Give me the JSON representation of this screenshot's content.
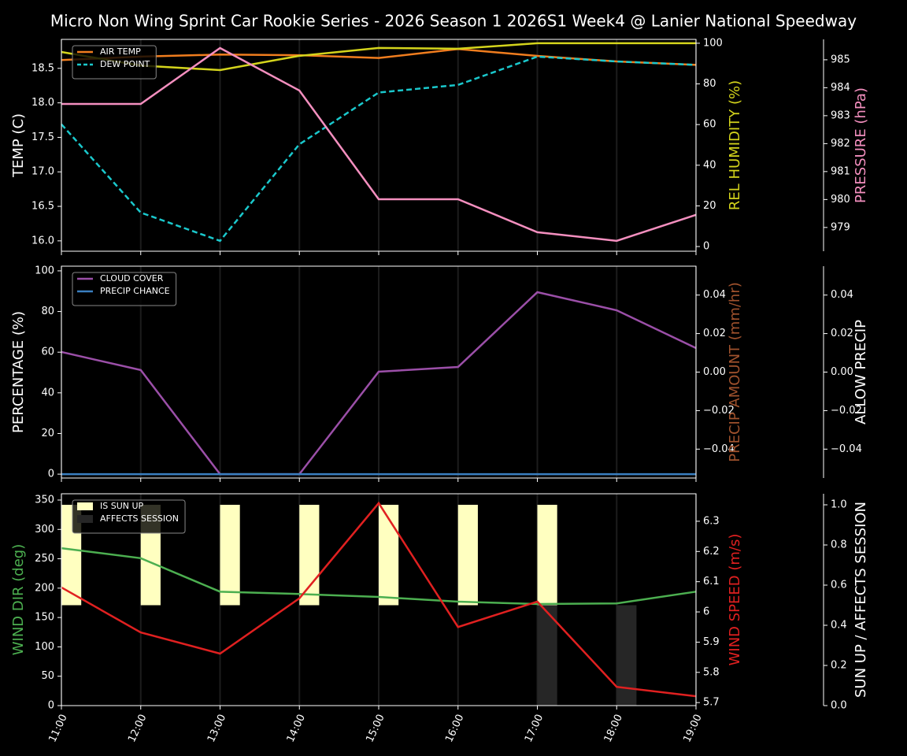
{
  "chart_data": [
    {
      "type": "line",
      "title": "Micro Non Wing Sprint Car Rookie Series - 2026 Season 1 2026S1 Week4 @ Lanier National Speedway",
      "legend": "upper left",
      "ylabel": "TEMP (C)",
      "ylabel_color": "#ffffff",
      "ylim": [
        15.85,
        18.92
      ],
      "yticks": [
        {
          "value": 16.0,
          "label": "16.0"
        },
        {
          "value": 16.5,
          "label": "16.5"
        },
        {
          "value": 17.0,
          "label": "17.0"
        },
        {
          "value": 17.5,
          "label": "17.5"
        },
        {
          "value": 18.0,
          "label": "18.0"
        },
        {
          "value": 18.5,
          "label": "18.5"
        }
      ],
      "y2label": "REL HUMIDITY (%)",
      "y2label_color": "#d4d41c",
      "y2lim": [
        -2.3,
        101.9
      ],
      "y2ticks": [
        0,
        20,
        40,
        60,
        80,
        100
      ],
      "y3label": "PRESSURE (hPa)",
      "y3label_color": "#f48fbf",
      "y3lim": [
        978.15,
        985.73
      ],
      "y3ticks": [
        979,
        980,
        981,
        982,
        983,
        984,
        985
      ],
      "series": [
        {
          "name": "AIR TEMP",
          "color": "#f07d1e",
          "values": [
            18.62,
            18.67,
            18.7,
            18.69,
            18.65,
            18.78,
            18.68,
            18.6,
            18.55
          ]
        },
        {
          "name": "DEW POINT",
          "color": "#1ac8cc",
          "dashed": true,
          "values": [
            17.69,
            16.41,
            16.0,
            17.4,
            18.15,
            18.26,
            18.67,
            18.6,
            18.55
          ]
        },
        {
          "axis": "y2",
          "color": "#d4d41c",
          "values": [
            95.7,
            89,
            86.8,
            93.8,
            97.7,
            97.3,
            100,
            100,
            100
          ]
        },
        {
          "axis": "y3",
          "color": "#f48fbf",
          "values": [
            983.42,
            983.42,
            985.42,
            983.9,
            980.01,
            980.01,
            978.83,
            978.52,
            979.45
          ]
        }
      ]
    },
    {
      "type": "line",
      "legend": "upper left",
      "ylabel": "PERCENTAGE (%)",
      "ylabel_color": "#ffffff",
      "ylim": [
        -1.9,
        102.3
      ],
      "yticks": [
        0,
        20,
        40,
        60,
        80,
        100
      ],
      "y2label": "PRECIP AMOUNT (mm/hr)",
      "y2label_color": "#a0522d",
      "y2lim": [
        -0.055,
        0.055
      ],
      "y2ticks": [
        {
          "value": -0.04,
          "label": "−0.04"
        },
        {
          "value": -0.02,
          "label": "−0.02"
        },
        {
          "value": 0,
          "label": "0.00"
        },
        {
          "value": 0.02,
          "label": "0.02"
        },
        {
          "value": 0.04,
          "label": "0.04"
        }
      ],
      "y3label": "ALLOW PRECIP",
      "y3label_color": "#ffffff",
      "y3lim": [
        -0.055,
        0.055
      ],
      "y3ticks": [
        {
          "value": -0.04,
          "label": "−0.04"
        },
        {
          "value": -0.02,
          "label": "−0.02"
        },
        {
          "value": 0,
          "label": "0.00"
        },
        {
          "value": 0.02,
          "label": "0.02"
        },
        {
          "value": 0.04,
          "label": "0.04"
        }
      ],
      "series": [
        {
          "name": "CLOUD COVER",
          "color": "#9b4fa8",
          "values": [
            60.1,
            51.2,
            0,
            0,
            50.4,
            52.7,
            89.5,
            80.6,
            62
          ]
        },
        {
          "name": "PRECIP CHANCE",
          "color": "#3a7fc0",
          "values": [
            0,
            0,
            0,
            0,
            0,
            0,
            0,
            0,
            0
          ]
        }
      ]
    },
    {
      "type": "line",
      "legend": "upper left",
      "categories": [
        "11:00",
        "12:00",
        "13:00",
        "14:00",
        "15:00",
        "16:00",
        "17:00",
        "18:00",
        "19:00"
      ],
      "ylabel": "WIND DIR (deg)",
      "ylabel_color": "#4caf50",
      "ylim": [
        0,
        360.7
      ],
      "yticks": [
        0,
        50,
        100,
        150,
        200,
        250,
        300,
        350
      ],
      "y2label": "WIND SPEED (m/s)",
      "y2label_color": "#e02020",
      "y2lim": [
        5.69,
        6.391
      ],
      "y2ticks": [
        5.7,
        5.8,
        5.9,
        6.0,
        6.1,
        6.2,
        6.3
      ],
      "y3label": "SUN UP / AFFECTS SESSION",
      "y3label_color": "#ffffff",
      "y3lim": [
        0,
        1.055
      ],
      "y3ticks": [
        {
          "value": 0,
          "label": "0.0"
        },
        {
          "value": 0.2,
          "label": "0.2"
        },
        {
          "value": 0.4,
          "label": "0.4"
        },
        {
          "value": 0.6,
          "label": "0.6"
        },
        {
          "value": 0.8,
          "label": "0.8"
        },
        {
          "value": 1,
          "label": "1.0"
        }
      ],
      "series": [
        {
          "name": "IS SUN UP",
          "type": "bar",
          "axis": "y3",
          "color": "#ffffc0",
          "bottom": 0.5,
          "values": [
            1,
            1,
            1,
            1,
            1,
            1,
            1,
            null,
            null
          ]
        },
        {
          "name": "AFFECTS SESSION",
          "type": "bar",
          "axis": "y3",
          "color": "#262626",
          "values": [
            0,
            0,
            0,
            0,
            0,
            0,
            0.5,
            0.5,
            0
          ]
        },
        {
          "color": "#4caf50",
          "values": [
            268,
            251,
            194,
            190,
            185,
            177,
            173,
            174,
            194
          ]
        },
        {
          "axis": "y2",
          "color": "#e02020",
          "values": [
            6.081,
            5.932,
            5.862,
            6.045,
            6.36,
            5.95,
            6.034,
            5.752,
            5.721
          ]
        }
      ]
    }
  ]
}
